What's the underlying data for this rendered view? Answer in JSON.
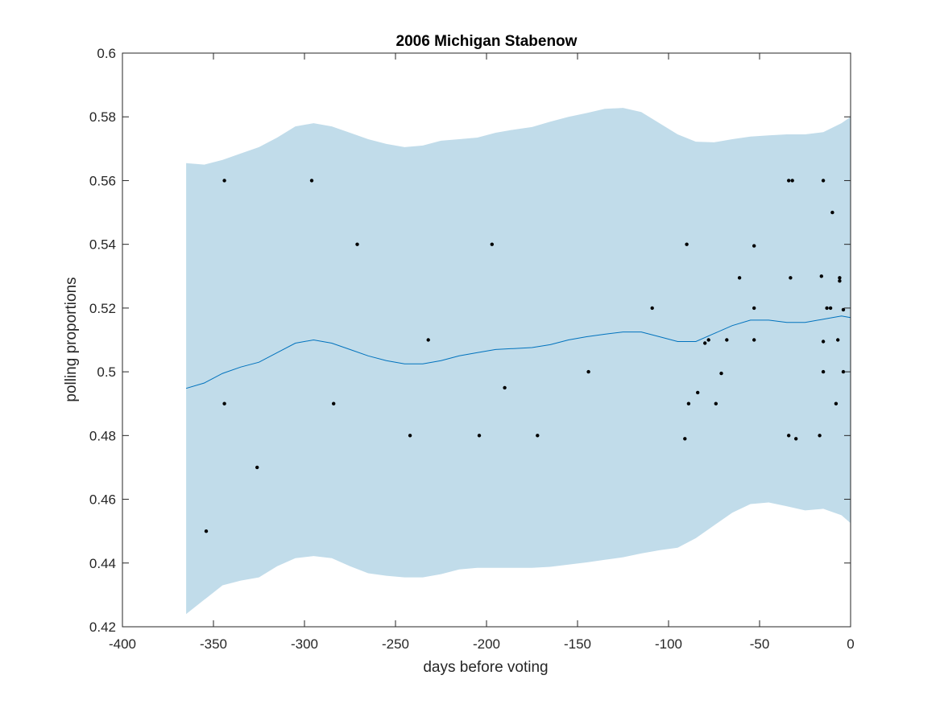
{
  "chart_data": {
    "type": "line",
    "title": "2006 Michigan Stabenow",
    "xlabel": "days before voting",
    "ylabel": "polling proportions",
    "xlim": [
      -400,
      0
    ],
    "ylim": [
      0.42,
      0.6
    ],
    "xticks": [
      -400,
      -350,
      -300,
      -250,
      -200,
      -150,
      -100,
      -50,
      0
    ],
    "yticks": [
      0.42,
      0.44,
      0.46,
      0.48,
      0.5,
      0.52,
      0.54,
      0.56,
      0.58,
      0.6
    ],
    "xtick_labels": [
      "-400",
      "-350",
      "-300",
      "-250",
      "-200",
      "-150",
      "-100",
      "-50",
      "0"
    ],
    "ytick_labels": [
      "0.42",
      "0.44",
      "0.46",
      "0.48",
      "0.5",
      "0.52",
      "0.54",
      "0.56",
      "0.58",
      "0.6"
    ],
    "grid": false,
    "colors": {
      "band": "#c1dcea",
      "line": "#0072bd",
      "points": "#000000",
      "axes": "#262626"
    },
    "trend": {
      "x": [
        -365,
        -355,
        -345,
        -335,
        -325,
        -315,
        -305,
        -295,
        -285,
        -275,
        -265,
        -255,
        -245,
        -235,
        -225,
        -215,
        -205,
        -195,
        -185,
        -175,
        -165,
        -155,
        -145,
        -135,
        -125,
        -115,
        -105,
        -95,
        -85,
        -75,
        -65,
        -55,
        -45,
        -35,
        -25,
        -15,
        -5,
        0
      ],
      "y": [
        0.4948,
        0.4965,
        0.4995,
        0.5015,
        0.503,
        0.506,
        0.509,
        0.51,
        0.509,
        0.507,
        0.505,
        0.5035,
        0.5025,
        0.5025,
        0.5035,
        0.505,
        0.506,
        0.507,
        0.5073,
        0.5076,
        0.5085,
        0.51,
        0.511,
        0.5118,
        0.5125,
        0.5125,
        0.511,
        0.5095,
        0.5095,
        0.512,
        0.5145,
        0.5162,
        0.5162,
        0.5155,
        0.5155,
        0.5165,
        0.5175,
        0.517
      ]
    },
    "band": {
      "x": [
        -365,
        -355,
        -345,
        -335,
        -325,
        -315,
        -305,
        -295,
        -285,
        -275,
        -265,
        -255,
        -245,
        -235,
        -225,
        -215,
        -205,
        -195,
        -185,
        -175,
        -165,
        -155,
        -145,
        -135,
        -125,
        -115,
        -105,
        -95,
        -85,
        -75,
        -65,
        -55,
        -45,
        -35,
        -25,
        -15,
        -5,
        0
      ],
      "upper": [
        0.5655,
        0.565,
        0.5665,
        0.5685,
        0.5705,
        0.5735,
        0.577,
        0.578,
        0.577,
        0.575,
        0.573,
        0.5715,
        0.5705,
        0.571,
        0.5725,
        0.573,
        0.5735,
        0.575,
        0.576,
        0.5768,
        0.5785,
        0.58,
        0.5812,
        0.5825,
        0.5828,
        0.5815,
        0.578,
        0.5745,
        0.5722,
        0.572,
        0.573,
        0.5738,
        0.5742,
        0.5745,
        0.5745,
        0.5752,
        0.578,
        0.58
      ],
      "lower": [
        0.424,
        0.4285,
        0.433,
        0.4345,
        0.4355,
        0.439,
        0.4415,
        0.4422,
        0.4415,
        0.439,
        0.4368,
        0.436,
        0.4355,
        0.4355,
        0.4365,
        0.438,
        0.4385,
        0.4385,
        0.4385,
        0.4385,
        0.4388,
        0.4395,
        0.4402,
        0.441,
        0.4418,
        0.443,
        0.444,
        0.4448,
        0.4478,
        0.4518,
        0.4558,
        0.4585,
        0.459,
        0.4578,
        0.4565,
        0.457,
        0.455,
        0.4525
      ]
    },
    "points": {
      "x": [
        -354,
        -344,
        -344,
        -326,
        -296,
        -284,
        -271,
        -242,
        -232,
        -204,
        -197,
        -190,
        -172,
        -144,
        -109,
        -91,
        -90,
        -89,
        -84,
        -80,
        -78,
        -74,
        -71,
        -68,
        -61,
        -53,
        -53,
        -53,
        -34,
        -34,
        -33,
        -32,
        -30,
        -17,
        -16,
        -15,
        -15,
        -15,
        -13,
        -11,
        -10,
        -8,
        -7,
        -6,
        -6,
        -4,
        -4
      ],
      "y": [
        0.45,
        0.56,
        0.49,
        0.47,
        0.56,
        0.49,
        0.54,
        0.48,
        0.51,
        0.48,
        0.54,
        0.495,
        0.48,
        0.5,
        0.52,
        0.479,
        0.54,
        0.49,
        0.4935,
        0.509,
        0.51,
        0.49,
        0.4995,
        0.51,
        0.5295,
        0.5395,
        0.52,
        0.51,
        0.48,
        0.56,
        0.5295,
        0.56,
        0.479,
        0.48,
        0.53,
        0.5095,
        0.5,
        0.56,
        0.52,
        0.52,
        0.55,
        0.49,
        0.51,
        0.5295,
        0.5285,
        0.5195,
        0.5
      ]
    }
  }
}
